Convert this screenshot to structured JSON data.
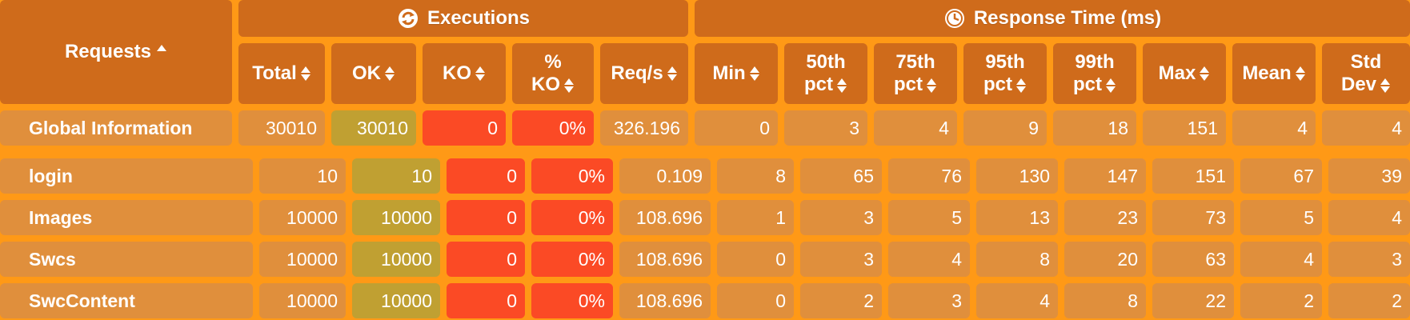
{
  "groups": {
    "requests_label": "Requests",
    "executions_label": "Executions",
    "response_time_label": "Response Time (ms)"
  },
  "columns": {
    "total": "Total",
    "ok": "OK",
    "ko": "KO",
    "pct_ko_1": "%",
    "pct_ko_2": "KO",
    "req_s": "Req/s",
    "min": "Min",
    "p50_1": "50th",
    "p50_2": "pct",
    "p75_1": "75th",
    "p75_2": "pct",
    "p95_1": "95th",
    "p95_2": "pct",
    "p99_1": "99th",
    "p99_2": "pct",
    "max": "Max",
    "mean": "Mean",
    "std_1": "Std",
    "std_2": "Dev"
  },
  "rows": [
    {
      "name": "Global Information",
      "total": "30010",
      "ok": "30010",
      "ko": "0",
      "pct_ko": "0%",
      "req_s": "326.196",
      "min": "0",
      "p50": "3",
      "p75": "4",
      "p95": "9",
      "p99": "18",
      "max": "151",
      "mean": "4",
      "std": "4"
    },
    {
      "name": "login",
      "total": "10",
      "ok": "10",
      "ko": "0",
      "pct_ko": "0%",
      "req_s": "0.109",
      "min": "8",
      "p50": "65",
      "p75": "76",
      "p95": "130",
      "p99": "147",
      "max": "151",
      "mean": "67",
      "std": "39"
    },
    {
      "name": "Images",
      "total": "10000",
      "ok": "10000",
      "ko": "0",
      "pct_ko": "0%",
      "req_s": "108.696",
      "min": "1",
      "p50": "3",
      "p75": "5",
      "p95": "13",
      "p99": "23",
      "max": "73",
      "mean": "5",
      "std": "4"
    },
    {
      "name": "Swcs",
      "total": "10000",
      "ok": "10000",
      "ko": "0",
      "pct_ko": "0%",
      "req_s": "108.696",
      "min": "0",
      "p50": "3",
      "p75": "4",
      "p95": "8",
      "p99": "20",
      "max": "63",
      "mean": "4",
      "std": "3"
    },
    {
      "name": "SwcContent",
      "total": "10000",
      "ok": "10000",
      "ko": "0",
      "pct_ko": "0%",
      "req_s": "108.696",
      "min": "0",
      "p50": "2",
      "p75": "3",
      "p95": "4",
      "p99": "8",
      "max": "22",
      "mean": "2",
      "std": "2"
    }
  ],
  "colors": {
    "background": "#ff9916",
    "header": "#cf6b1b",
    "cell": "#e08f3c",
    "ok": "#c0a032",
    "ko": "#fb4a25"
  },
  "icons": {
    "executions": "refresh-icon",
    "response_time": "clock-icon"
  }
}
